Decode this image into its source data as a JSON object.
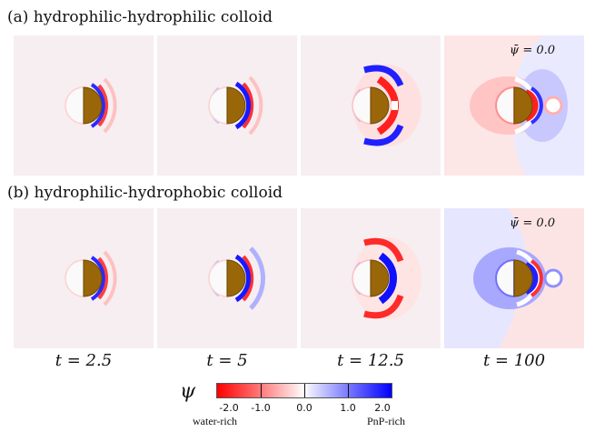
{
  "rows": [
    {
      "label": "(a) hydrophilic-hydrophilic colloid",
      "annotation": "ψ̄ = 0.0"
    },
    {
      "label": "(b) hydrophilic-hydrophobic colloid",
      "annotation": "ψ̄ = 0.0"
    }
  ],
  "times": [
    "t = 2.5",
    "t = 5",
    "t = 12.5",
    "t = 100"
  ],
  "colorbar": {
    "symbol": "ψ",
    "ticks": [
      "-2.0",
      "-1.0",
      "0.0",
      "1.0",
      "2.0"
    ],
    "left_label": "water-rich",
    "right_label": "PnP-rich",
    "colors": {
      "low": "#ff0000",
      "mid": "#ffffff",
      "high": "#0000ff"
    }
  },
  "colors": {
    "colloid_janus_half": "#99670a",
    "colloid_white_half": "#fafafa",
    "background": "#f6eef0"
  }
}
